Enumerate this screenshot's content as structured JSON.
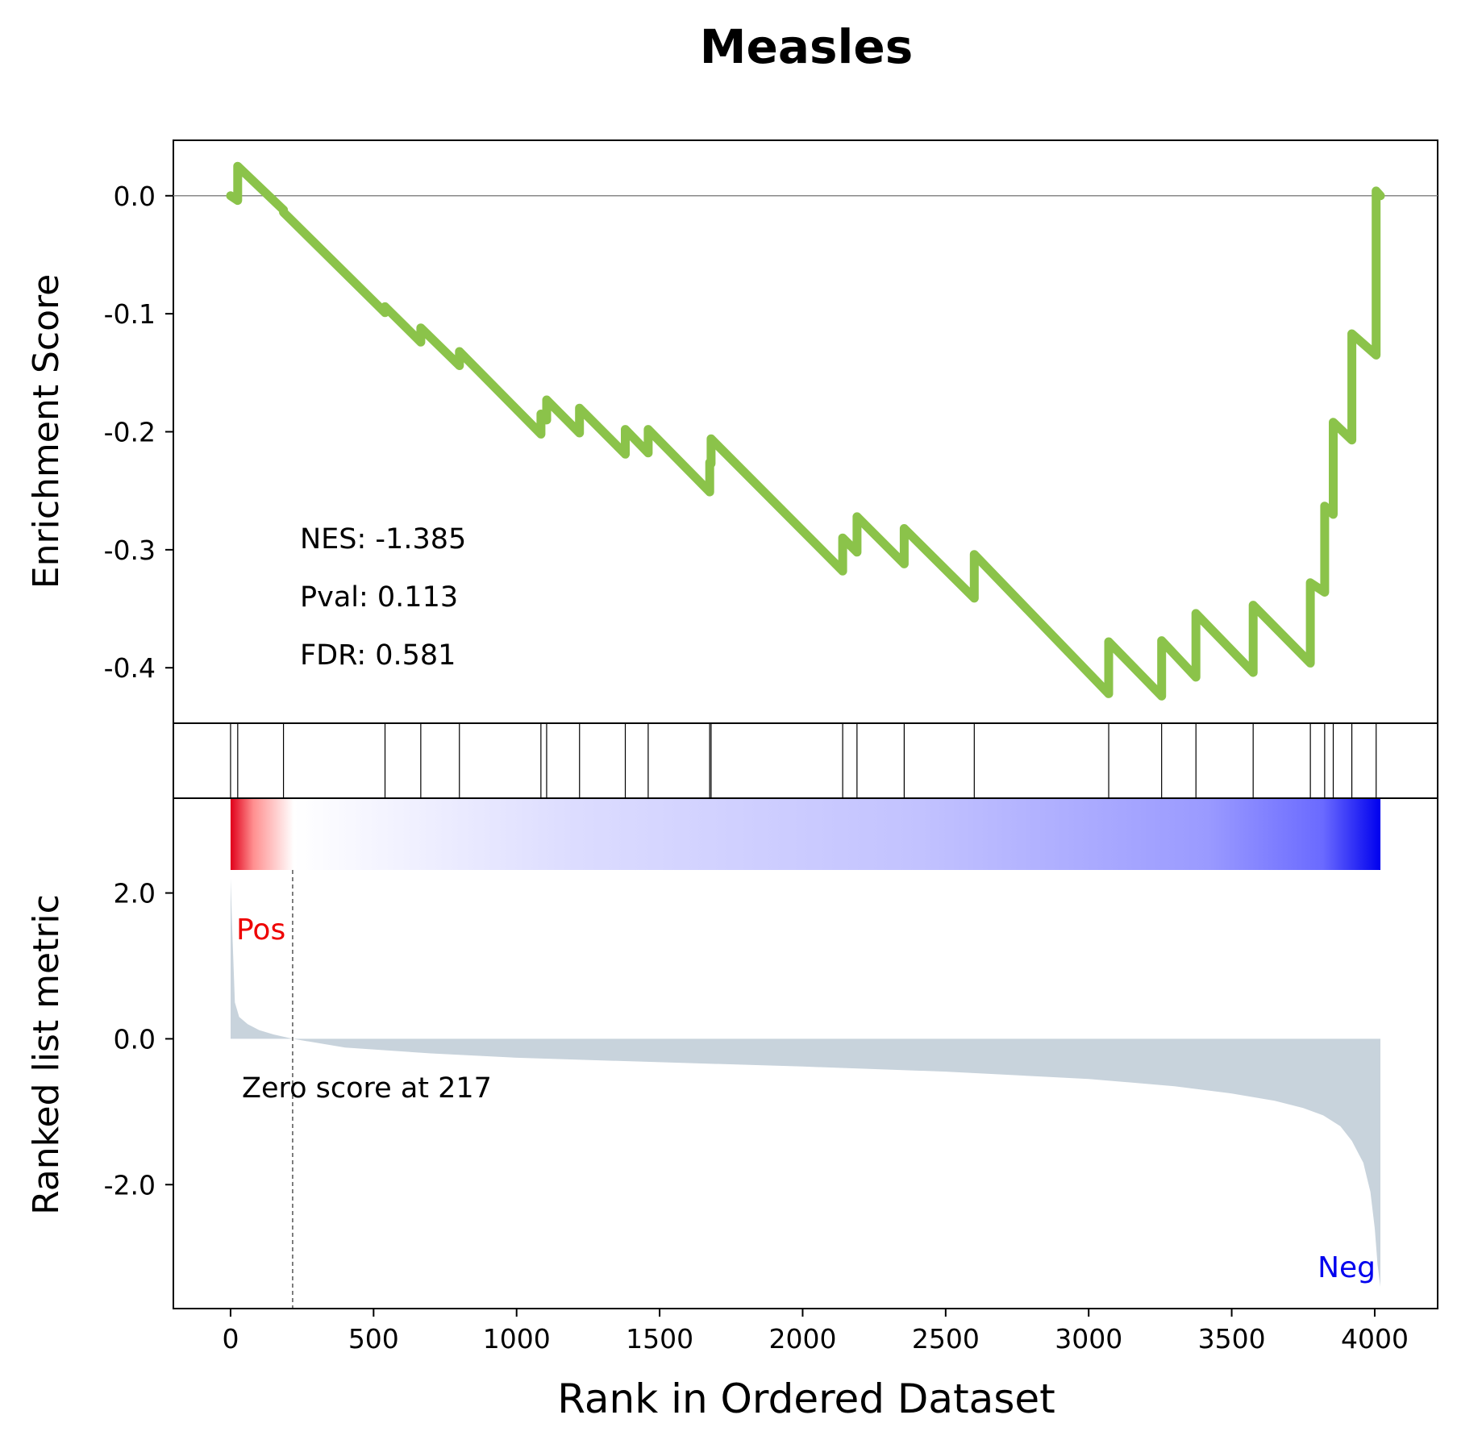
{
  "chart_data": {
    "type": "line",
    "title": "Measles",
    "xlabel": "Rank in Ordered Dataset",
    "xlim": [
      -200,
      4220
    ],
    "xticks": [
      0,
      500,
      1000,
      1500,
      2000,
      2500,
      3000,
      3500,
      4000
    ],
    "es_panel": {
      "ylabel": "Enrichment Score",
      "ylim": [
        -0.447,
        0.047
      ],
      "yticks": [
        0.0,
        -0.1,
        -0.2,
        -0.3,
        -0.4
      ],
      "ytick_labels": [
        "0.0",
        "-0.1",
        "-0.2",
        "-0.3",
        "-0.4"
      ],
      "line_color": "#8bc34a",
      "hits": [
        0,
        25,
        185,
        540,
        665,
        800,
        1085,
        1105,
        1220,
        1380,
        1460,
        1675,
        1680,
        2140,
        2190,
        2355,
        2600,
        3070,
        3255,
        3375,
        3575,
        3775,
        3825,
        3855,
        3920,
        4005
      ],
      "curve_x": [
        0,
        25,
        25,
        185,
        185,
        540,
        540,
        665,
        665,
        800,
        800,
        1085,
        1085,
        1105,
        1105,
        1220,
        1220,
        1380,
        1380,
        1460,
        1460,
        1675,
        1675,
        1680,
        1680,
        2140,
        2140,
        2190,
        2190,
        2355,
        2355,
        2600,
        2600,
        3070,
        3070,
        3255,
        3255,
        3375,
        3375,
        3575,
        3575,
        3775,
        3775,
        3825,
        3825,
        3855,
        3855,
        3920,
        3920,
        4005,
        4005,
        4020
      ],
      "curve_y": [
        0.0,
        -0.004,
        0.025,
        -0.012,
        -0.014,
        -0.099,
        -0.094,
        -0.124,
        -0.112,
        -0.144,
        -0.132,
        -0.202,
        -0.185,
        -0.19,
        -0.173,
        -0.201,
        -0.18,
        -0.219,
        -0.198,
        -0.218,
        -0.198,
        -0.251,
        -0.226,
        -0.227,
        -0.206,
        -0.318,
        -0.29,
        -0.302,
        -0.272,
        -0.312,
        -0.282,
        -0.341,
        -0.304,
        -0.422,
        -0.378,
        -0.424,
        -0.377,
        -0.408,
        -0.354,
        -0.404,
        -0.347,
        -0.396,
        -0.328,
        -0.336,
        -0.263,
        -0.27,
        -0.192,
        -0.207,
        -0.117,
        -0.135,
        0.004,
        0.0
      ]
    },
    "annotations": {
      "nes": "NES: -1.385",
      "pval": "Pval: 0.113",
      "fdr": "FDR: 0.581",
      "zero": "Zero score at 217",
      "pos": "Pos",
      "neg": "Neg"
    },
    "rank_panel": {
      "ylabel": "Ranked list metric",
      "ylim": [
        -3.7,
        3.3
      ],
      "yticks": [
        2.0,
        0.0,
        -2.0
      ],
      "ytick_labels": [
        "2.0",
        "0.0",
        "-2.0"
      ],
      "zero_cross": 217,
      "fill_color": "#c8d3dc",
      "metric_x": [
        0,
        5,
        15,
        30,
        60,
        100,
        150,
        217,
        400,
        700,
        1000,
        1500,
        2000,
        2500,
        3000,
        3300,
        3500,
        3650,
        3750,
        3820,
        3880,
        3920,
        3960,
        3985,
        4000,
        4010,
        4020
      ],
      "metric_y": [
        2.2,
        1.6,
        0.5,
        0.3,
        0.2,
        0.12,
        0.06,
        0.0,
        -0.12,
        -0.2,
        -0.26,
        -0.32,
        -0.38,
        -0.45,
        -0.55,
        -0.65,
        -0.75,
        -0.85,
        -0.95,
        -1.05,
        -1.2,
        -1.4,
        -1.7,
        -2.1,
        -2.6,
        -3.1,
        -3.4
      ]
    },
    "colorbar": {
      "stops": [
        {
          "at": 0.0,
          "color": "#e0001a"
        },
        {
          "at": 0.02,
          "color": "#ff9090"
        },
        {
          "at": 0.055,
          "color": "#ffffff"
        },
        {
          "at": 0.3,
          "color": "#dcdcff"
        },
        {
          "at": 0.6,
          "color": "#c2c2ff"
        },
        {
          "at": 0.85,
          "color": "#9a9aff"
        },
        {
          "at": 0.95,
          "color": "#6a6aff"
        },
        {
          "at": 1.0,
          "color": "#0000ee"
        }
      ]
    }
  }
}
